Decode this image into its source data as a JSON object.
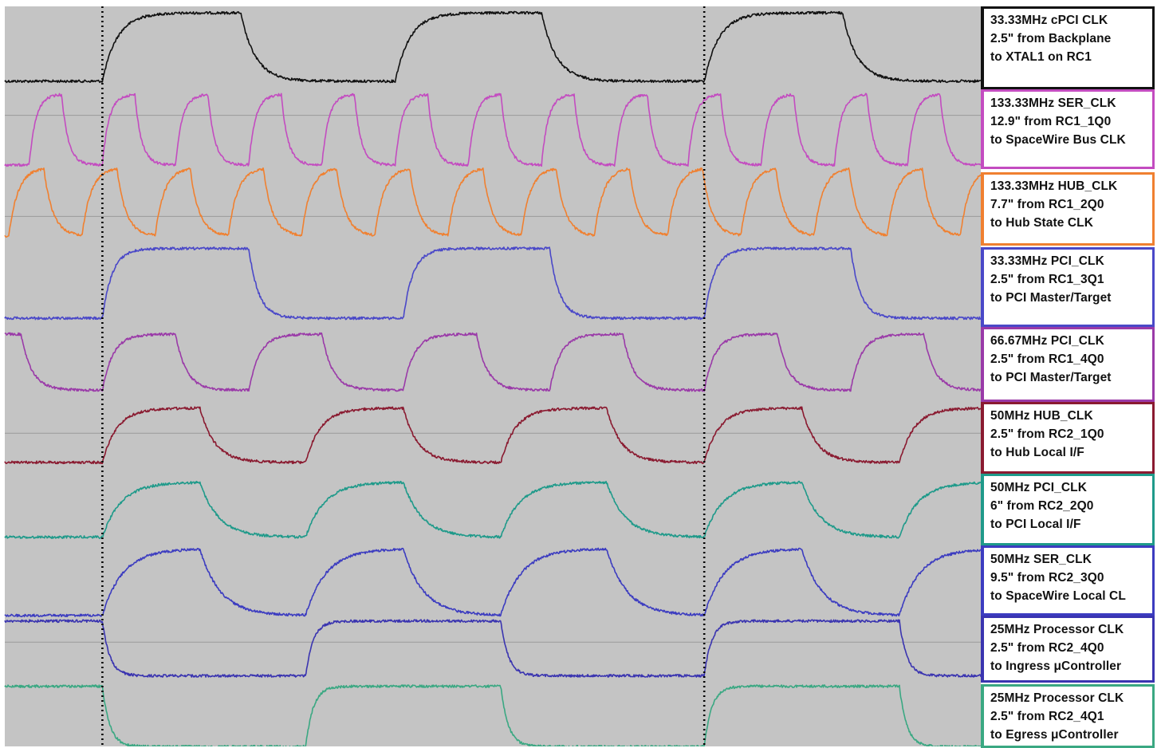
{
  "chart_data": {
    "type": "line",
    "title": "",
    "xlabel": "",
    "ylabel": "",
    "time_window": [
      0,
      120
    ],
    "grid": false,
    "colors": {
      "background": "#c4c4c4",
      "baseline": "#9a9a9a",
      "cursor": "#000000"
    },
    "cursors": [
      12,
      86
    ],
    "series": [
      {
        "name": "33.33MHz cPCI CLK",
        "label_lines": [
          "33.33MHz cPCI CLK",
          "2.5\" from Backplane",
          "to XTAL1 on RC1"
        ],
        "color": "#111111",
        "frequency_mhz": 33.33,
        "edges": [
          [
            12,
            1
          ],
          [
            29,
            0
          ],
          [
            48,
            1
          ],
          [
            66,
            0
          ],
          [
            86,
            1
          ],
          [
            103,
            0
          ],
          [
            122,
            1
          ]
        ],
        "initial_level": 0,
        "tau": 1.8,
        "high_norm": 0.92,
        "low_norm": 0.08,
        "baseline_norm": 0.0
      },
      {
        "name": "133.33MHz SER_CLK",
        "label_lines": [
          "133.33MHz SER_CLK",
          "12.9\" from RC1_1Q0",
          "to SpaceWire Bus CLK"
        ],
        "color": "#c34cc0",
        "frequency_mhz": 133.33,
        "edges": [
          [
            3,
            1
          ],
          [
            7,
            0
          ],
          [
            12,
            1
          ],
          [
            16,
            0
          ],
          [
            21,
            1
          ],
          [
            25,
            0
          ],
          [
            30,
            1
          ],
          [
            34,
            0
          ],
          [
            39,
            1
          ],
          [
            43,
            0
          ],
          [
            48,
            1
          ],
          [
            52,
            0
          ],
          [
            57,
            1
          ],
          [
            61,
            0
          ],
          [
            66,
            1
          ],
          [
            70,
            0
          ],
          [
            75,
            1
          ],
          [
            79,
            0
          ],
          [
            84,
            1
          ],
          [
            88,
            0
          ],
          [
            93,
            1
          ],
          [
            97,
            0
          ],
          [
            102,
            1
          ],
          [
            106,
            0
          ],
          [
            111,
            1
          ],
          [
            115,
            0
          ],
          [
            120,
            1
          ]
        ],
        "initial_level": 0,
        "tau": 0.8,
        "high_norm": 0.92,
        "low_norm": 0.05,
        "baseline_norm": 0.66
      },
      {
        "name": "133.33MHz HUB_CLK",
        "label_lines": [
          "133.33MHz HUB_CLK",
          "7.7\" from RC1_2Q0",
          "to Hub State CLK"
        ],
        "color": "#f08030",
        "frequency_mhz": 133.33,
        "edges": [
          [
            0.5,
            1
          ],
          [
            4.8,
            0
          ],
          [
            9.5,
            1
          ],
          [
            13.8,
            0
          ],
          [
            18.5,
            1
          ],
          [
            22.8,
            0
          ],
          [
            27.5,
            1
          ],
          [
            31.8,
            0
          ],
          [
            36.5,
            1
          ],
          [
            40.8,
            0
          ],
          [
            45.5,
            1
          ],
          [
            49.8,
            0
          ],
          [
            54.5,
            1
          ],
          [
            58.8,
            0
          ],
          [
            63.5,
            1
          ],
          [
            67.8,
            0
          ],
          [
            72.5,
            1
          ],
          [
            76.8,
            0
          ],
          [
            81.5,
            1
          ],
          [
            85.8,
            0
          ],
          [
            90.5,
            1
          ],
          [
            94.8,
            0
          ],
          [
            99.5,
            1
          ],
          [
            103.8,
            0
          ],
          [
            108.5,
            1
          ],
          [
            112.8,
            0
          ],
          [
            117.5,
            1
          ]
        ],
        "initial_level": 0,
        "tau": 1.1,
        "high_norm": 0.9,
        "low_norm": 0.06,
        "baseline_norm": 0.3
      },
      {
        "name": "33.33MHz PCI_CLK",
        "label_lines": [
          "33.33MHz PCI_CLK",
          "2.5\" from RC1_3Q1",
          "to PCI Master/Target"
        ],
        "color": "#4a48c8",
        "frequency_mhz": 33.33,
        "edges": [
          [
            12,
            1
          ],
          [
            30,
            0
          ],
          [
            49,
            1
          ],
          [
            67,
            0
          ],
          [
            86,
            1
          ],
          [
            104,
            0
          ],
          [
            122,
            1
          ]
        ],
        "initial_level": 0,
        "tau": 1.2,
        "high_norm": 0.93,
        "low_norm": 0.12,
        "baseline_norm": 0.0
      },
      {
        "name": "66.67MHz PCI_CLK",
        "label_lines": [
          "66.67MHz PCI_CLK",
          "2.5\" from RC1_4Q0",
          "to PCI Master/Target"
        ],
        "color": "#9a3aa8",
        "frequency_mhz": 66.67,
        "edges": [
          [
            2,
            0
          ],
          [
            12,
            1
          ],
          [
            21,
            0
          ],
          [
            30,
            1
          ],
          [
            39,
            0
          ],
          [
            49,
            1
          ],
          [
            58,
            0
          ],
          [
            67,
            1
          ],
          [
            76,
            0
          ],
          [
            86,
            1
          ],
          [
            95,
            0
          ],
          [
            104,
            1
          ],
          [
            113,
            0
          ],
          [
            122,
            1
          ]
        ],
        "initial_level": 1,
        "tau": 1.3,
        "high_norm": 0.9,
        "low_norm": 0.12,
        "baseline_norm": 0.0
      },
      {
        "name": "50MHz HUB_CLK",
        "label_lines": [
          "50MHz HUB_CLK",
          "2.5\" from RC2_1Q0",
          "to Hub Local I/F"
        ],
        "color": "#8a1a30",
        "frequency_mhz": 50,
        "edges": [
          [
            12,
            1
          ],
          [
            24,
            0
          ],
          [
            37,
            1
          ],
          [
            49,
            0
          ],
          [
            61,
            1
          ],
          [
            74,
            0
          ],
          [
            86,
            1
          ],
          [
            98,
            0
          ],
          [
            110,
            1
          ],
          [
            122,
            0
          ]
        ],
        "initial_level": 0,
        "tau": 1.8,
        "high_norm": 0.92,
        "low_norm": 0.12,
        "baseline_norm": 0.55
      },
      {
        "name": "50MHz PCI_CLK",
        "label_lines": [
          "50MHz PCI_CLK",
          "6\" from RC2_2Q0",
          "to PCI Local I/F"
        ],
        "color": "#1f9a8a",
        "frequency_mhz": 50,
        "edges": [
          [
            12,
            1
          ],
          [
            24,
            0
          ],
          [
            37,
            1
          ],
          [
            49,
            0
          ],
          [
            61,
            1
          ],
          [
            74,
            0
          ],
          [
            86,
            1
          ],
          [
            98,
            0
          ],
          [
            110,
            1
          ],
          [
            122,
            0
          ]
        ],
        "initial_level": 0,
        "tau": 2.3,
        "high_norm": 0.92,
        "low_norm": 0.1,
        "baseline_norm": 0.0
      },
      {
        "name": "50MHz SER_CLK",
        "label_lines": [
          "50MHz SER_CLK",
          "9.5\" from RC2_3Q0",
          "to SpaceWire Local CL"
        ],
        "color": "#3c3cc0",
        "frequency_mhz": 50,
        "edges": [
          [
            12,
            1
          ],
          [
            24,
            0
          ],
          [
            37,
            1
          ],
          [
            49,
            0
          ],
          [
            61,
            1
          ],
          [
            74,
            0
          ],
          [
            86,
            1
          ],
          [
            98,
            0
          ],
          [
            110,
            1
          ],
          [
            122,
            0
          ]
        ],
        "initial_level": 0,
        "tau": 2.5,
        "high_norm": 0.9,
        "low_norm": 0.08,
        "baseline_norm": 0.0
      },
      {
        "name": "25MHz Processor CLK",
        "label_lines": [
          "25MHz Processor CLK",
          "2.5\" from RC2_4Q0",
          "to Ingress μController"
        ],
        "color": "#3a34b0",
        "frequency_mhz": 25,
        "edges": [
          [
            12,
            0
          ],
          [
            37,
            1
          ],
          [
            61,
            0
          ],
          [
            86,
            1
          ],
          [
            110,
            0
          ]
        ],
        "initial_level": 1,
        "tau": 0.9,
        "high_norm": 0.9,
        "low_norm": 0.12,
        "baseline_norm": 0.6
      },
      {
        "name": "25MHz Processor CLK",
        "label_lines": [
          "25MHz Processor CLK",
          "2.5\" from RC2_4Q1",
          "to Egress μController"
        ],
        "color": "#3aa882",
        "frequency_mhz": 25,
        "edges": [
          [
            12,
            0
          ],
          [
            37,
            1
          ],
          [
            61,
            0
          ],
          [
            86,
            1
          ],
          [
            110,
            0
          ]
        ],
        "initial_level": 1,
        "tau": 0.9,
        "high_norm": 0.9,
        "low_norm": 0.02,
        "baseline_norm": 0.0
      }
    ]
  }
}
